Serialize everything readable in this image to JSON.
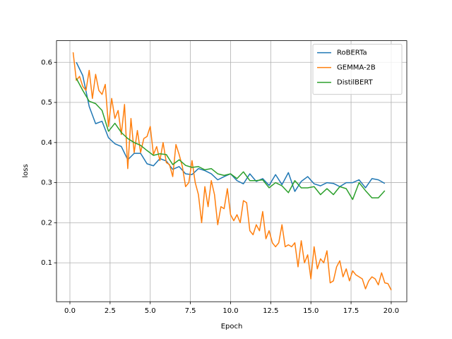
{
  "chart_data": {
    "type": "line",
    "x_label": "Epoch",
    "y_label": "loss",
    "xlim": [
      -0.835,
      20.97
    ],
    "ylim": [
      0.003,
      0.654
    ],
    "xticks": [
      {
        "value": 0,
        "label": "0.0"
      },
      2.5,
      {
        "value": 5,
        "label": "5.0"
      },
      7.5,
      {
        "value": 10,
        "label": "10.0"
      },
      12.5,
      {
        "value": 15,
        "label": "15.0"
      },
      17.5,
      {
        "value": 20,
        "label": "20.0"
      }
    ],
    "yticks": [
      0.1,
      0.2,
      0.3,
      0.4,
      0.5,
      0.6
    ],
    "grid": true,
    "legend": "upper right",
    "series": [
      {
        "name": "RoBERTa",
        "color": "#1f77b4",
        "x": [
          0.4,
          0.8,
          1.2,
          1.6,
          2.0,
          2.4,
          2.8,
          3.2,
          3.6,
          4.0,
          4.4,
          4.8,
          5.2,
          5.6,
          6.0,
          6.4,
          6.8,
          7.2,
          7.6,
          8.0,
          8.4,
          8.8,
          9.2,
          9.6,
          10.0,
          10.4,
          10.8,
          11.2,
          11.6,
          12.0,
          12.4,
          12.8,
          13.2,
          13.6,
          14.0,
          14.4,
          14.8,
          15.2,
          15.6,
          16.0,
          16.4,
          16.8,
          17.2,
          17.6,
          18.0,
          18.4,
          18.8,
          19.2,
          19.6
        ],
        "values": [
          0.6,
          0.567,
          0.49,
          0.447,
          0.453,
          0.412,
          0.397,
          0.39,
          0.357,
          0.373,
          0.373,
          0.347,
          0.342,
          0.36,
          0.354,
          0.333,
          0.34,
          0.322,
          0.32,
          0.335,
          0.33,
          0.322,
          0.307,
          0.315,
          0.322,
          0.305,
          0.297,
          0.322,
          0.303,
          0.31,
          0.293,
          0.32,
          0.295,
          0.325,
          0.278,
          0.303,
          0.315,
          0.297,
          0.292,
          0.3,
          0.298,
          0.29,
          0.3,
          0.3,
          0.307,
          0.287,
          0.31,
          0.307,
          0.298
        ]
      },
      {
        "name": "GEMMA-2B",
        "color": "#ff7f0e",
        "x": [
          0.2,
          0.4,
          0.6,
          0.8,
          1.0,
          1.2,
          1.4,
          1.6,
          1.8,
          2.0,
          2.2,
          2.4,
          2.6,
          2.8,
          3.0,
          3.2,
          3.4,
          3.6,
          3.8,
          4.0,
          4.2,
          4.4,
          4.6,
          4.8,
          5.0,
          5.2,
          5.4,
          5.6,
          5.8,
          6.0,
          6.2,
          6.4,
          6.6,
          6.8,
          7.0,
          7.2,
          7.4,
          7.6,
          7.8,
          8.0,
          8.2,
          8.4,
          8.6,
          8.8,
          9.0,
          9.2,
          9.4,
          9.6,
          9.8,
          10.0,
          10.2,
          10.4,
          10.6,
          10.8,
          11.0,
          11.2,
          11.4,
          11.6,
          11.8,
          12.0,
          12.2,
          12.4,
          12.6,
          12.8,
          13.0,
          13.2,
          13.4,
          13.6,
          13.8,
          14.0,
          14.2,
          14.4,
          14.6,
          14.8,
          15.0,
          15.2,
          15.4,
          15.6,
          15.8,
          16.0,
          16.2,
          16.4,
          16.6,
          16.8,
          17.0,
          17.2,
          17.4,
          17.6,
          17.8,
          18.0,
          18.2,
          18.4,
          18.6,
          18.8,
          19.0,
          19.2,
          19.4,
          19.6,
          19.8,
          20.0
        ],
        "values": [
          0.625,
          0.555,
          0.565,
          0.54,
          0.53,
          0.58,
          0.51,
          0.57,
          0.53,
          0.52,
          0.545,
          0.44,
          0.51,
          0.46,
          0.48,
          0.42,
          0.495,
          0.335,
          0.46,
          0.375,
          0.43,
          0.375,
          0.41,
          0.415,
          0.44,
          0.37,
          0.39,
          0.355,
          0.4,
          0.35,
          0.345,
          0.315,
          0.395,
          0.37,
          0.34,
          0.29,
          0.3,
          0.355,
          0.3,
          0.27,
          0.2,
          0.29,
          0.24,
          0.305,
          0.27,
          0.195,
          0.24,
          0.235,
          0.285,
          0.22,
          0.205,
          0.22,
          0.2,
          0.255,
          0.25,
          0.18,
          0.17,
          0.195,
          0.18,
          0.228,
          0.16,
          0.18,
          0.15,
          0.14,
          0.15,
          0.195,
          0.14,
          0.145,
          0.14,
          0.15,
          0.09,
          0.155,
          0.1,
          0.12,
          0.06,
          0.14,
          0.085,
          0.11,
          0.1,
          0.13,
          0.05,
          0.055,
          0.09,
          0.105,
          0.065,
          0.085,
          0.055,
          0.08,
          0.07,
          0.065,
          0.06,
          0.035,
          0.055,
          0.065,
          0.06,
          0.045,
          0.075,
          0.05,
          0.048,
          0.032
        ]
      },
      {
        "name": "DistilBERT",
        "color": "#2ca02c",
        "x": [
          0.4,
          0.8,
          1.2,
          1.6,
          2.0,
          2.4,
          2.8,
          3.2,
          3.6,
          4.0,
          4.4,
          4.8,
          5.2,
          5.6,
          6.0,
          6.4,
          6.8,
          7.2,
          7.6,
          8.0,
          8.4,
          8.8,
          9.2,
          9.6,
          10.0,
          10.4,
          10.8,
          11.2,
          11.6,
          12.0,
          12.4,
          12.8,
          13.2,
          13.6,
          14.0,
          14.4,
          14.8,
          15.2,
          15.6,
          16.0,
          16.4,
          16.8,
          17.2,
          17.6,
          18.0,
          18.4,
          18.8,
          19.2,
          19.6
        ],
        "values": [
          0.56,
          0.53,
          0.503,
          0.497,
          0.48,
          0.428,
          0.448,
          0.425,
          0.41,
          0.4,
          0.393,
          0.38,
          0.368,
          0.372,
          0.37,
          0.345,
          0.357,
          0.343,
          0.338,
          0.34,
          0.332,
          0.335,
          0.322,
          0.318,
          0.322,
          0.31,
          0.327,
          0.305,
          0.305,
          0.307,
          0.287,
          0.3,
          0.292,
          0.275,
          0.305,
          0.287,
          0.287,
          0.29,
          0.27,
          0.285,
          0.27,
          0.29,
          0.285,
          0.258,
          0.3,
          0.28,
          0.262,
          0.262,
          0.28
        ]
      }
    ]
  }
}
